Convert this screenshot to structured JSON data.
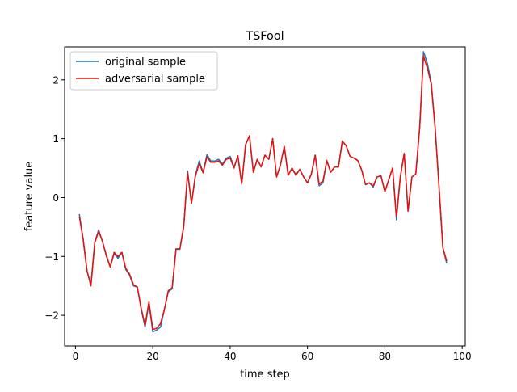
{
  "chart_data": {
    "type": "line",
    "title": "TSFool",
    "xlabel": "time step",
    "ylabel": "feature value",
    "xlim": [
      -2.8,
      100.8
    ],
    "ylim": [
      -2.52,
      2.56
    ],
    "xticks": [
      0,
      20,
      40,
      60,
      80,
      100
    ],
    "yticks": [
      -2,
      -1,
      0,
      1,
      2
    ],
    "xtick_labels": [
      "0",
      "20",
      "40",
      "60",
      "80",
      "100"
    ],
    "ytick_labels": [
      "−2",
      "−1",
      "0",
      "1",
      "2"
    ],
    "legend_position": "upper-left",
    "grid": false,
    "x": [
      1,
      2,
      3,
      4,
      5,
      6,
      7,
      8,
      9,
      10,
      11,
      12,
      13,
      14,
      15,
      16,
      17,
      18,
      19,
      20,
      21,
      22,
      23,
      24,
      25,
      26,
      27,
      28,
      29,
      30,
      31,
      32,
      33,
      34,
      35,
      36,
      37,
      38,
      39,
      40,
      41,
      42,
      43,
      44,
      45,
      46,
      47,
      48,
      49,
      50,
      51,
      52,
      53,
      54,
      55,
      56,
      57,
      58,
      59,
      60,
      61,
      62,
      63,
      64,
      65,
      66,
      67,
      68,
      69,
      70,
      71,
      72,
      73,
      74,
      75,
      76,
      77,
      78,
      79,
      80,
      81,
      82,
      83,
      84,
      85,
      86,
      87,
      88,
      89,
      90,
      91,
      92,
      93,
      94,
      95,
      96
    ],
    "series": [
      {
        "name": "original sample",
        "color": "#1f77b4",
        "values": [
          -0.28,
          -0.7,
          -1.25,
          -1.48,
          -0.75,
          -0.55,
          -0.75,
          -1.0,
          -1.18,
          -0.95,
          -1.03,
          -0.93,
          -1.22,
          -1.32,
          -1.5,
          -1.52,
          -1.9,
          -2.2,
          -1.8,
          -2.28,
          -2.25,
          -2.2,
          -1.9,
          -1.6,
          -1.55,
          -0.88,
          -0.88,
          -0.5,
          0.45,
          -0.1,
          0.38,
          0.62,
          0.43,
          0.73,
          0.62,
          0.62,
          0.65,
          0.57,
          0.67,
          0.7,
          0.52,
          0.7,
          0.23,
          0.9,
          1.05,
          0.43,
          0.65,
          0.52,
          0.72,
          0.65,
          1.0,
          0.35,
          0.55,
          0.87,
          0.38,
          0.5,
          0.38,
          0.48,
          0.35,
          0.25,
          0.4,
          0.72,
          0.2,
          0.25,
          0.62,
          0.43,
          0.52,
          0.52,
          0.95,
          0.88,
          0.7,
          0.67,
          0.63,
          0.47,
          0.22,
          0.25,
          0.18,
          0.35,
          0.37,
          0.1,
          0.3,
          0.5,
          -0.38,
          0.35,
          0.75,
          -0.23,
          0.35,
          0.4,
          1.18,
          2.48,
          2.28,
          1.95,
          1.2,
          0.2,
          -0.85,
          -1.12
        ]
      },
      {
        "name": "adversarial sample",
        "color": "#e8100c",
        "values": [
          -0.32,
          -0.72,
          -1.25,
          -1.5,
          -0.77,
          -0.57,
          -0.75,
          -0.98,
          -1.18,
          -0.93,
          -1.0,
          -0.93,
          -1.2,
          -1.3,
          -1.48,
          -1.52,
          -1.88,
          -2.17,
          -1.77,
          -2.24,
          -2.22,
          -2.14,
          -1.9,
          -1.58,
          -1.53,
          -0.87,
          -0.87,
          -0.48,
          0.42,
          -0.1,
          0.36,
          0.58,
          0.42,
          0.69,
          0.6,
          0.6,
          0.62,
          0.55,
          0.65,
          0.67,
          0.5,
          0.71,
          0.23,
          0.9,
          1.05,
          0.43,
          0.65,
          0.52,
          0.72,
          0.65,
          1.0,
          0.35,
          0.55,
          0.87,
          0.38,
          0.5,
          0.38,
          0.48,
          0.35,
          0.25,
          0.4,
          0.72,
          0.23,
          0.28,
          0.63,
          0.43,
          0.52,
          0.52,
          0.96,
          0.88,
          0.7,
          0.67,
          0.63,
          0.47,
          0.22,
          0.25,
          0.2,
          0.35,
          0.37,
          0.1,
          0.3,
          0.5,
          -0.33,
          0.35,
          0.75,
          -0.23,
          0.35,
          0.4,
          1.18,
          2.4,
          2.2,
          1.93,
          1.18,
          0.2,
          -0.85,
          -1.08
        ]
      }
    ]
  }
}
